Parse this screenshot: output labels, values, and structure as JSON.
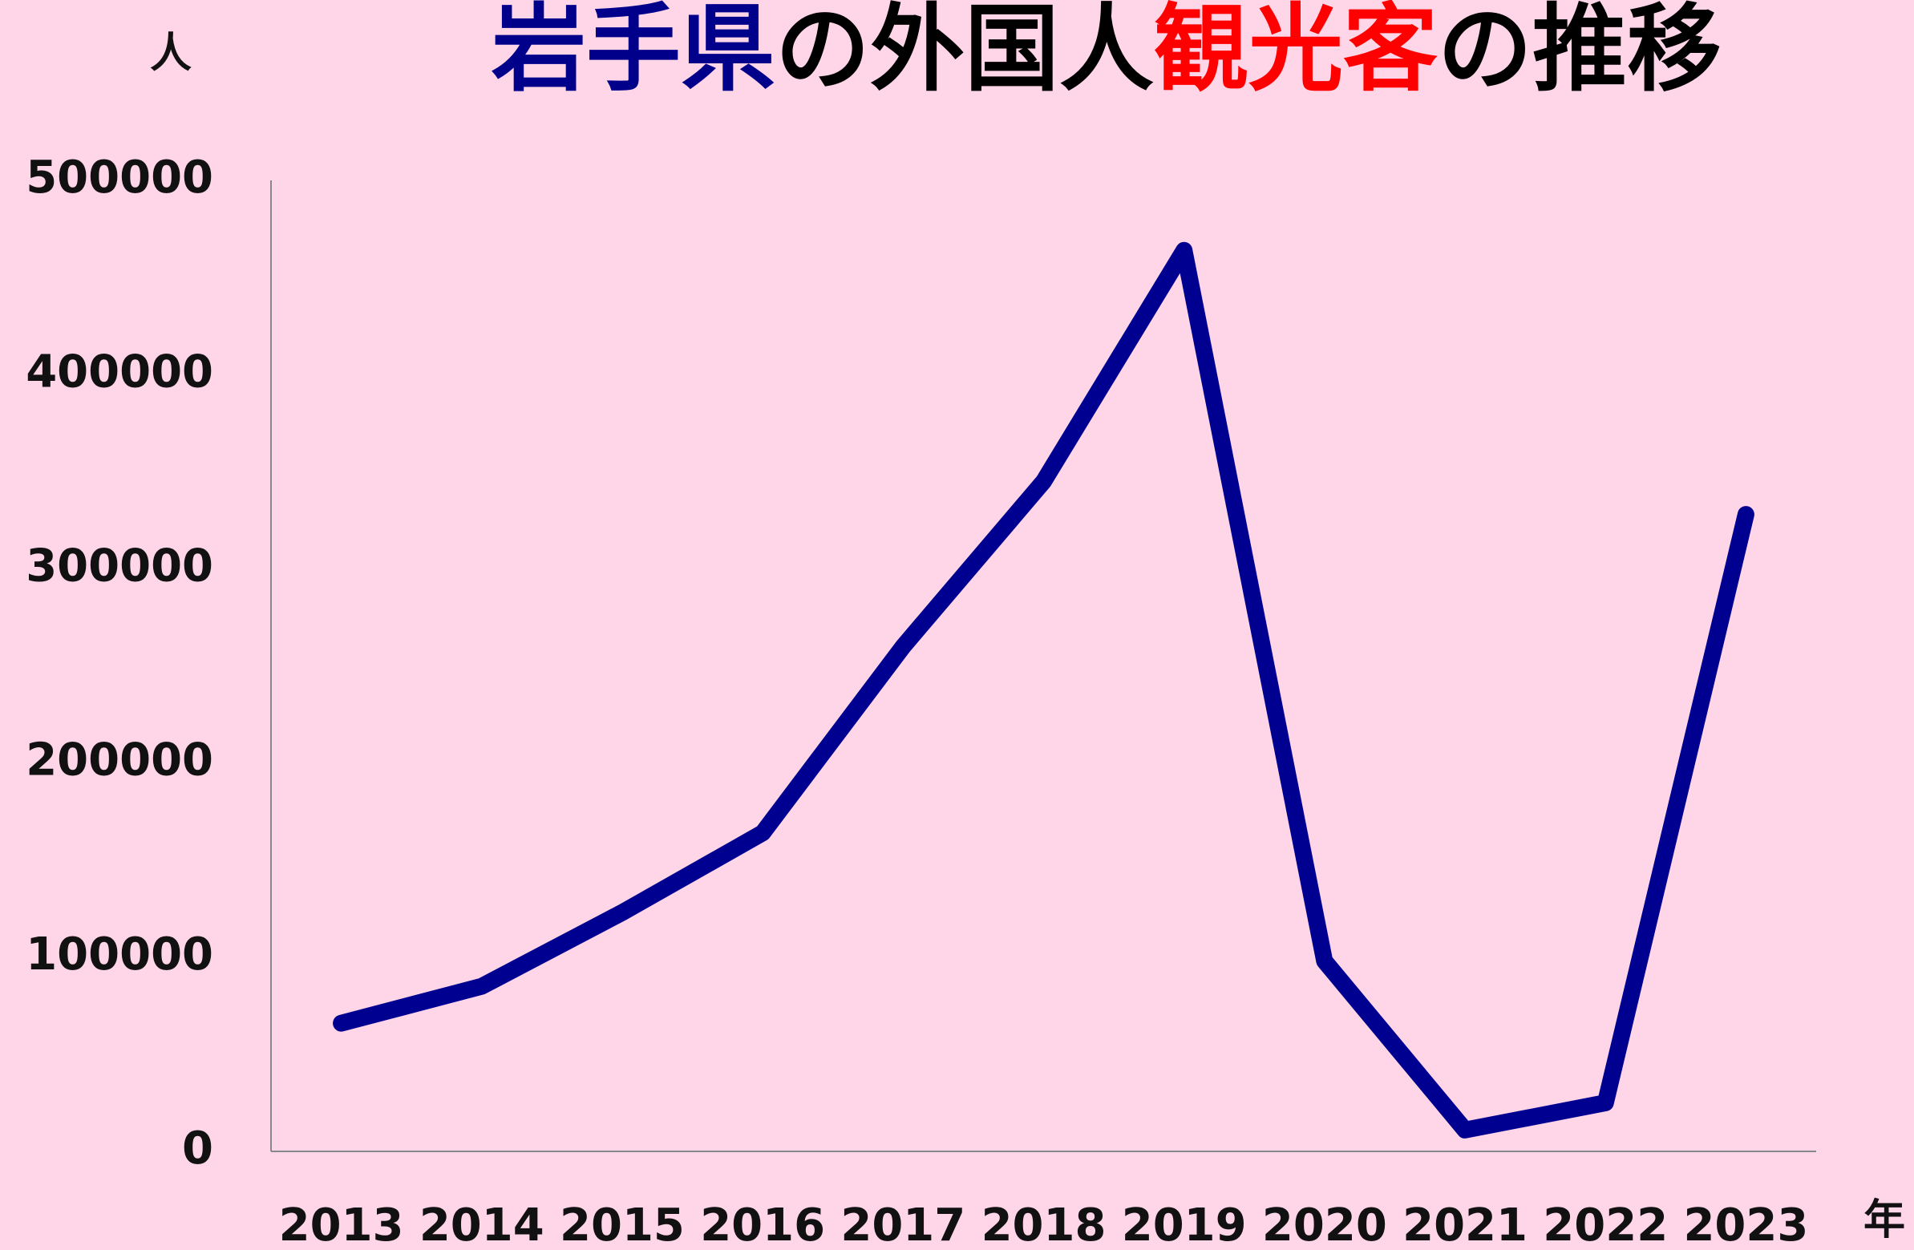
{
  "chart_data": {
    "type": "line",
    "title": [
      {
        "text": "岩手県",
        "color": "#00008b"
      },
      {
        "text": "の外国人",
        "color": "#000000"
      },
      {
        "text": "観光客",
        "color": "#ff0000"
      },
      {
        "text": "の推移",
        "color": "#000000"
      }
    ],
    "y_label": "人",
    "x_label": "年",
    "categories": [
      "2013",
      "2014",
      "2015",
      "2016",
      "2017",
      "2018",
      "2019",
      "2020",
      "2021",
      "2022",
      "2023"
    ],
    "series": [
      {
        "name": "外国人観光客",
        "color": "#000090",
        "values": [
          66000,
          85000,
          123000,
          164000,
          260000,
          345000,
          464000,
          98000,
          11000,
          25000,
          328000
        ]
      }
    ],
    "ylim": [
      0,
      500000
    ],
    "yticks": [
      0,
      100000,
      200000,
      300000,
      400000,
      500000
    ],
    "grid": false
  }
}
